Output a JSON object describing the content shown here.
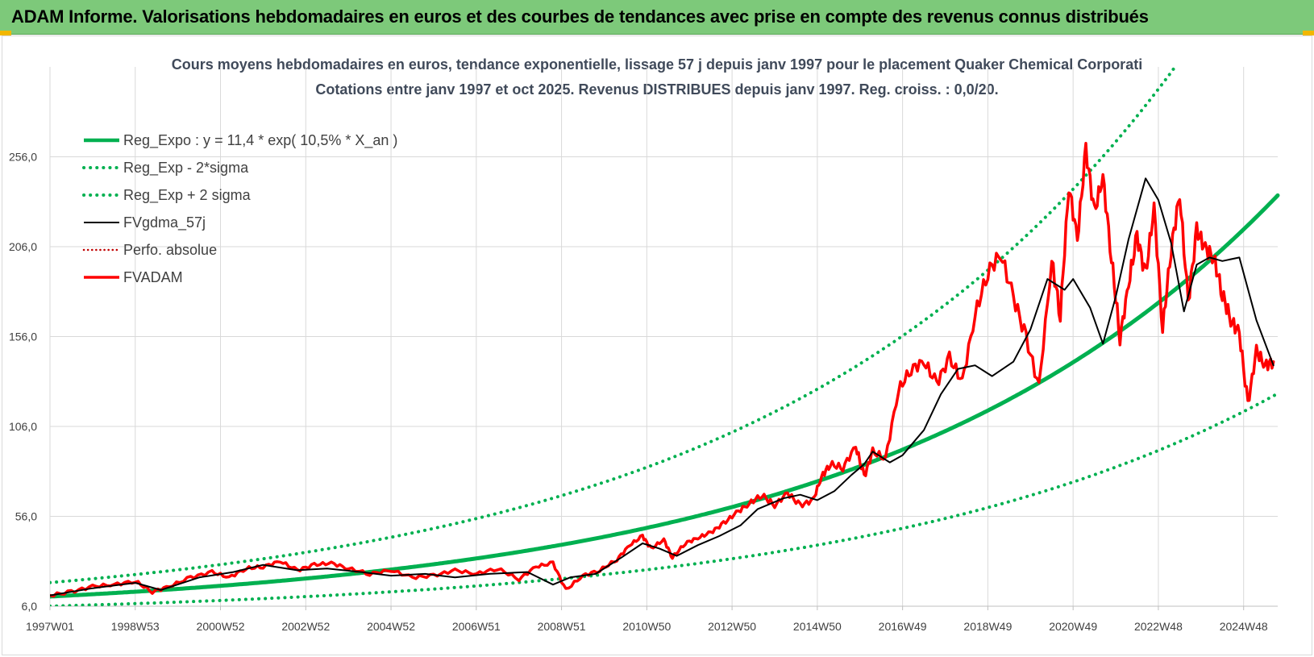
{
  "header": {
    "title": "ADAM Informe. Valorisations hebdomadaires en euros et des courbes de tendances avec prise en compte des revenus connus distribués"
  },
  "chart_data": {
    "type": "line",
    "title": "Cours moyens hebdomadaires en euros, tendance exponentielle, lissage 57 j depuis janv 1997 pour le placement Quaker Chemical Corporati",
    "subtitle": "Cotations entre janv 1997 et oct 2025. Revenus DISTRIBUES depuis janv 1997. Reg. croiss. : 0,0/20.",
    "xlabel": "",
    "ylabel": "",
    "ylim": [
      6.0,
      306.0
    ],
    "xlim": [
      1997.0,
      2025.8
    ],
    "grid": true,
    "legend_position": "top-left",
    "yticks": [
      "6,0",
      "56,0",
      "106,0",
      "156,0",
      "206,0",
      "256,0"
    ],
    "ytick_values": [
      6,
      56,
      106,
      156,
      206,
      256
    ],
    "xticks": [
      "1997W01",
      "1998W53",
      "2000W52",
      "2002W52",
      "2004W52",
      "2006W51",
      "2008W51",
      "2010W50",
      "2012W50",
      "2014W50",
      "2016W49",
      "2018W49",
      "2020W49",
      "2022W48",
      "2024W48"
    ],
    "xtick_values": [
      1997.0,
      1999.0,
      2001.0,
      2003.0,
      2005.0,
      2007.0,
      2009.0,
      2011.0,
      2013.0,
      2015.0,
      2017.0,
      2019.0,
      2021.0,
      2023.0,
      2025.0
    ],
    "series": [
      {
        "name": "Reg_Expo : y = 11,4 * exp( 10,5% *  X_an )",
        "color": "#00b050",
        "style": "solid-thick",
        "formula": {
          "a": 11.4,
          "b": 0.105,
          "factor": 1.0
        }
      },
      {
        "name": "Reg_Exp - 2*sigma",
        "color": "#00b050",
        "style": "dotted",
        "formula": {
          "a": 11.4,
          "b": 0.105,
          "factor": 0.53
        }
      },
      {
        "name": "Reg_Exp + 2 sigma",
        "color": "#00b050",
        "style": "dotted",
        "formula": {
          "a": 11.4,
          "b": 0.105,
          "factor": 1.68
        }
      },
      {
        "name": "FVgdma_57j",
        "color": "#000000",
        "style": "solid-thin",
        "x": [
          1997.0,
          1998.0,
          1999.0,
          1999.6,
          2000.5,
          2001.3,
          2002.0,
          2002.8,
          2003.5,
          2004.3,
          2005.0,
          2005.8,
          2006.5,
          2007.3,
          2008.2,
          2008.8,
          2009.2,
          2009.8,
          2010.4,
          2010.9,
          2011.3,
          2011.7,
          2012.2,
          2012.7,
          2013.2,
          2013.6,
          2014.2,
          2014.6,
          2015.0,
          2015.4,
          2015.8,
          2016.1,
          2016.3,
          2016.7,
          2017.0,
          2017.5,
          2017.9,
          2018.3,
          2018.7,
          2019.1,
          2019.6,
          2020.0,
          2020.4,
          2020.8,
          2021.0,
          2021.4,
          2021.7,
          2022.0,
          2022.3,
          2022.7,
          2023.0,
          2023.3,
          2023.6,
          2023.9,
          2024.2,
          2024.5,
          2024.9,
          2025.3,
          2025.7
        ],
        "values": [
          12,
          16,
          19,
          15,
          22,
          25,
          29,
          26,
          27,
          25,
          23,
          24,
          22,
          24,
          25,
          18,
          22,
          24,
          33,
          41,
          38,
          34,
          40,
          45,
          51,
          60,
          66,
          68,
          65,
          70,
          79,
          85,
          92,
          86,
          90,
          104,
          124,
          138,
          140,
          134,
          142,
          160,
          188,
          182,
          188,
          172,
          152,
          178,
          210,
          244,
          232,
          208,
          170,
          196,
          200,
          198,
          200,
          165,
          140
        ]
      },
      {
        "name": "Perfo. absolue",
        "color": "#c00000",
        "style": "dotted-thin",
        "x": [],
        "values": []
      },
      {
        "name": "FVADAM",
        "color": "#ff0000",
        "style": "solid-thick",
        "x": [
          1997.0,
          1997.5,
          1998.0,
          1998.5,
          1999.0,
          1999.4,
          1999.8,
          2000.3,
          2000.8,
          2001.2,
          2001.6,
          2002.0,
          2002.4,
          2002.8,
          2003.2,
          2003.6,
          2004.0,
          2004.5,
          2005.0,
          2005.5,
          2006.0,
          2006.5,
          2007.0,
          2007.5,
          2008.0,
          2008.4,
          2008.8,
          2009.1,
          2009.5,
          2009.9,
          2010.3,
          2010.6,
          2010.9,
          2011.1,
          2011.4,
          2011.6,
          2011.9,
          2012.2,
          2012.5,
          2012.8,
          2013.1,
          2013.4,
          2013.7,
          2014.0,
          2014.3,
          2014.6,
          2014.9,
          2015.1,
          2015.3,
          2015.6,
          2015.9,
          2016.1,
          2016.3,
          2016.6,
          2016.9,
          2017.2,
          2017.5,
          2017.8,
          2018.1,
          2018.4,
          2018.7,
          2019.0,
          2019.3,
          2019.6,
          2019.9,
          2020.2,
          2020.5,
          2020.7,
          2020.9,
          2021.1,
          2021.3,
          2021.5,
          2021.7,
          2021.9,
          2022.1,
          2022.3,
          2022.5,
          2022.7,
          2022.9,
          2023.1,
          2023.3,
          2023.5,
          2023.7,
          2023.9,
          2024.1,
          2024.3,
          2024.5,
          2024.7,
          2024.9,
          2025.1,
          2025.3,
          2025.5,
          2025.7
        ],
        "values": [
          12,
          14,
          17,
          18,
          20,
          14,
          17,
          22,
          25,
          22,
          27,
          28,
          31,
          26,
          29,
          30,
          27,
          24,
          26,
          22,
          23,
          26,
          24,
          27,
          21,
          28,
          30,
          15,
          23,
          26,
          32,
          40,
          45,
          38,
          43,
          33,
          41,
          44,
          47,
          52,
          58,
          63,
          68,
          62,
          69,
          62,
          65,
          78,
          85,
          83,
          95,
          78,
          92,
          88,
          126,
          138,
          142,
          130,
          144,
          131,
          168,
          192,
          202,
          178,
          155,
          128,
          198,
          168,
          240,
          210,
          260,
          225,
          245,
          200,
          155,
          185,
          212,
          190,
          228,
          160,
          205,
          235,
          175,
          215,
          205,
          200,
          180,
          165,
          158,
          118,
          148,
          140,
          142
        ]
      }
    ]
  }
}
